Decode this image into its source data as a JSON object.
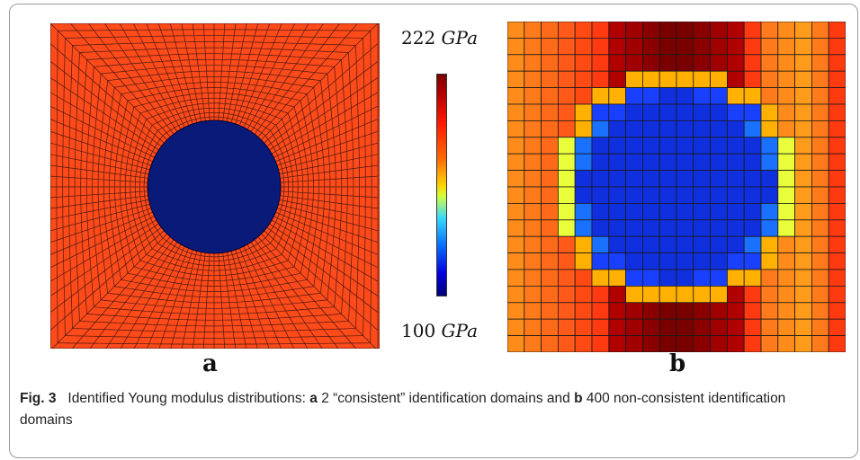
{
  "colorbar": {
    "max_value": "222",
    "max_unit": "GPa",
    "min_value": "100",
    "min_unit": "GPa"
  },
  "panels": {
    "a_label": "a",
    "b_label": "b"
  },
  "caption": {
    "fig_label": "Fig. 3",
    "text_1": "Identified Young modulus distributions: ",
    "bold_a": "a",
    "text_2": " 2 “consistent” identification domains and ",
    "bold_b": "b",
    "text_3": " 400 non-consistent identification domains"
  },
  "colors": {
    "matrix": "#ff4a1a",
    "inclusion": "#0a1a78",
    "mesh_line": "#4a1a10"
  }
}
